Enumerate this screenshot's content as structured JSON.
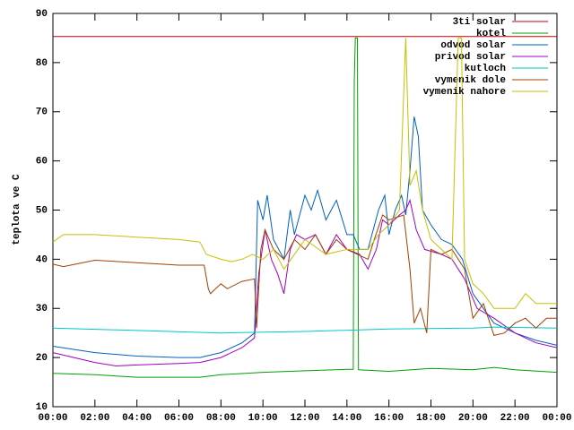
{
  "chart_data": {
    "type": "line",
    "y_label": "teplota ve C",
    "legend": "top-right",
    "xlim": [
      0,
      24
    ],
    "ylim": [
      10,
      90
    ],
    "xticks": [
      {
        "value": 0,
        "label": "00:00"
      },
      {
        "value": 2,
        "label": "02:00"
      },
      {
        "value": 4,
        "label": "04:00"
      },
      {
        "value": 6,
        "label": "06:00"
      },
      {
        "value": 8,
        "label": "08:00"
      },
      {
        "value": 10,
        "label": "10:00"
      },
      {
        "value": 12,
        "label": "12:00"
      },
      {
        "value": 14,
        "label": "14:00"
      },
      {
        "value": 16,
        "label": "16:00"
      },
      {
        "value": 18,
        "label": "18:00"
      },
      {
        "value": 20,
        "label": "20:00"
      },
      {
        "value": 22,
        "label": "22:00"
      },
      {
        "value": 24,
        "label": "00:00"
      }
    ],
    "yticks": [
      10,
      20,
      30,
      40,
      50,
      60,
      70,
      80,
      90
    ],
    "series": [
      {
        "name": "3ti solar",
        "color": "#c00000",
        "x": [
          0,
          24
        ],
        "values": [
          85.3,
          85.3
        ]
      },
      {
        "name": "kotel",
        "color": "#00a000",
        "x": [
          0,
          2,
          4,
          6,
          7,
          8,
          10,
          12,
          14,
          14.3,
          14.35,
          14.4,
          14.5,
          14.55,
          16,
          18,
          20,
          21,
          22,
          24
        ],
        "values": [
          16.8,
          16.5,
          16,
          16,
          16,
          16.5,
          17,
          17.3,
          17.6,
          17.6,
          76,
          85,
          85,
          17.5,
          17.2,
          17.8,
          17.5,
          18,
          17.5,
          17
        ]
      },
      {
        "name": "odvod solar",
        "color": "#0060c0",
        "x": [
          0,
          2,
          4,
          6,
          7,
          8,
          9,
          9.6,
          9.75,
          10,
          10.2,
          10.5,
          11,
          11.3,
          11.5,
          12,
          12.3,
          12.6,
          13,
          13.5,
          14,
          14.3,
          14.6,
          15,
          15.5,
          15.8,
          16,
          16.3,
          16.6,
          16.8,
          17,
          17.2,
          17.4,
          17.6,
          18,
          18.5,
          19,
          19.5,
          20,
          20.5,
          21,
          22,
          23,
          24
        ],
        "values": [
          22.3,
          21,
          20.3,
          20,
          20,
          21,
          23,
          25,
          52,
          48,
          53,
          44,
          40,
          50,
          45,
          53,
          50,
          54,
          48,
          52,
          45,
          45,
          42,
          42,
          50,
          53,
          45,
          50,
          53,
          49,
          58,
          69,
          65,
          50,
          47,
          44,
          43,
          40,
          33,
          30,
          27,
          25,
          23.5,
          22.5
        ]
      },
      {
        "name": "privod solar",
        "color": "#a000c0",
        "x": [
          0,
          2,
          3,
          4,
          6,
          7,
          8,
          9,
          9.6,
          9.8,
          10.1,
          10.4,
          10.7,
          11,
          11.3,
          11.6,
          12,
          12.5,
          13,
          13.5,
          14,
          14.6,
          15,
          15.4,
          15.7,
          16,
          16.5,
          16.8,
          17,
          17.3,
          17.7,
          18.5,
          19,
          19.6,
          20.2,
          21,
          22,
          23,
          24
        ],
        "values": [
          21,
          19,
          18.3,
          18.5,
          18.8,
          19,
          20,
          22,
          24,
          37,
          46,
          40,
          37,
          33,
          42,
          45,
          44,
          45,
          41,
          45,
          42,
          41,
          38,
          42,
          48,
          47,
          49,
          50,
          52,
          46,
          42,
          41,
          40,
          36,
          30,
          28,
          25,
          23,
          22
        ]
      },
      {
        "name": "kutloch",
        "color": "#00c8c8",
        "x": [
          0,
          4,
          8,
          12,
          16,
          20,
          21,
          24
        ],
        "values": [
          26,
          25.5,
          25,
          25.3,
          25.8,
          26,
          26.2,
          26
        ]
      },
      {
        "name": "vymenik dole",
        "color": "#a04000",
        "x": [
          0,
          0.5,
          2,
          4,
          6,
          7.2,
          7.4,
          7.5,
          8,
          8.3,
          9,
          9.6,
          9.7,
          9.9,
          10.1,
          10.5,
          11,
          11.5,
          12,
          12.5,
          13,
          13.5,
          14,
          14.5,
          15,
          15.3,
          15.7,
          16,
          16.7,
          17,
          17.2,
          17.5,
          17.8,
          18,
          18.5,
          19,
          19.6,
          20,
          20.5,
          21,
          21.5,
          22,
          22.5,
          23,
          23.5,
          24
        ],
        "values": [
          39,
          38.5,
          39.8,
          39.3,
          38.8,
          38.8,
          34,
          33,
          35,
          34,
          35.5,
          36,
          26,
          42,
          46,
          42,
          40,
          44,
          42,
          45,
          41,
          44,
          42,
          41,
          40,
          44,
          49,
          48,
          49,
          38,
          27,
          30,
          25,
          42,
          41,
          42,
          38,
          28,
          31,
          24.5,
          25,
          27,
          28,
          26,
          28,
          28
        ]
      },
      {
        "name": "vymenik nahore",
        "color": "#c8c000",
        "x": [
          0,
          0.5,
          2,
          4,
          6,
          7,
          7.3,
          8,
          8.5,
          9,
          9.5,
          10,
          10.5,
          11,
          11.5,
          12,
          13,
          14,
          15,
          15.5,
          16,
          16.5,
          16.8,
          17,
          17.3,
          17.6,
          18,
          18.5,
          19,
          19.3,
          19.45,
          19.6,
          20,
          20.5,
          21,
          22,
          22.5,
          23,
          24
        ],
        "values": [
          43.5,
          45,
          45,
          44.5,
          44,
          43.5,
          41,
          40,
          39.5,
          40,
          41,
          40,
          42,
          38,
          41,
          44,
          41,
          42,
          42,
          45,
          47,
          50,
          85,
          55,
          58,
          50,
          44,
          42,
          40,
          85,
          85,
          40,
          35,
          33,
          30,
          30,
          33,
          31,
          31
        ]
      }
    ]
  }
}
